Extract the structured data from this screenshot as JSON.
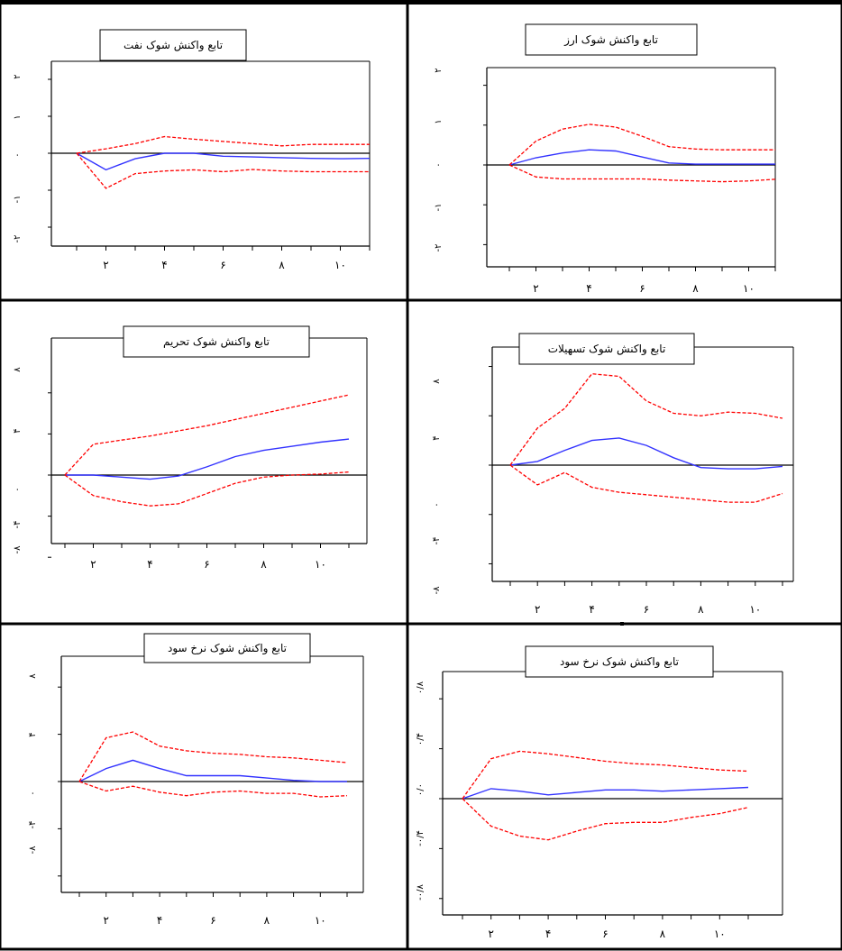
{
  "chart_data": [
    {
      "type": "line",
      "title": "تابع واکنش شوک نفت",
      "x": [
        1,
        2,
        3,
        4,
        5,
        6,
        7,
        8,
        9,
        10,
        11
      ],
      "x_ticks": [
        2,
        4,
        6,
        8,
        10
      ],
      "x_tick_labels": [
        "۲",
        "۴",
        "۶",
        "۸",
        "۱۰"
      ],
      "xlim": [
        0.5,
        11.4
      ],
      "ylim": [
        -2.5,
        2.5
      ],
      "y_ticks": [
        -2,
        -1,
        0,
        1,
        2
      ],
      "y_tick_labels": [
        "-۲",
        "-۱",
        "۰",
        "۱",
        "۲"
      ],
      "zero_line": true,
      "series": [
        {
          "values": [
            0,
            -0.45,
            -0.15,
            0.0,
            0.0,
            -0.08,
            -0.1,
            -0.12,
            -0.14,
            -0.15,
            -0.14
          ],
          "color": "#3333ff",
          "dash": "solid"
        },
        {
          "values": [
            0,
            0.12,
            0.26,
            0.45,
            0.38,
            0.32,
            0.26,
            0.2,
            0.24,
            0.24,
            0.24
          ],
          "color": "#ff0000",
          "dash": "dashed"
        },
        {
          "values": [
            0,
            -0.95,
            -0.55,
            -0.48,
            -0.45,
            -0.5,
            -0.44,
            -0.48,
            -0.5,
            -0.5,
            -0.5
          ],
          "color": "#ff0000",
          "dash": "dashed"
        }
      ]
    },
    {
      "type": "line",
      "title": "تابع واکنش شوک ارز",
      "x": [
        1,
        2,
        3,
        4,
        5,
        6,
        7,
        8,
        9,
        10,
        11
      ],
      "x_ticks": [
        2,
        4,
        6,
        8,
        10
      ],
      "x_tick_labels": [
        "۲",
        "۴",
        "۶",
        "۸",
        "۱۰"
      ],
      "xlim": [
        0.5,
        11.4
      ],
      "ylim": [
        -2.5,
        2.5
      ],
      "y_ticks": [
        -2,
        -1,
        0,
        1,
        2
      ],
      "y_tick_labels": [
        "-۲",
        "-۱",
        "۰",
        "۱",
        "۲"
      ],
      "zero_line": true,
      "series": [
        {
          "values": [
            0,
            0.18,
            0.3,
            0.38,
            0.35,
            0.2,
            0.05,
            0.02,
            0.02,
            0.02,
            0.02
          ],
          "color": "#3333ff",
          "dash": "solid"
        },
        {
          "values": [
            0,
            0.6,
            0.9,
            1.02,
            0.95,
            0.72,
            0.46,
            0.4,
            0.38,
            0.38,
            0.38
          ],
          "color": "#ff0000",
          "dash": "dashed"
        },
        {
          "values": [
            0,
            -0.3,
            -0.35,
            -0.35,
            -0.35,
            -0.35,
            -0.38,
            -0.4,
            -0.42,
            -0.4,
            -0.36
          ],
          "color": "#ff0000",
          "dash": "dashed"
        }
      ]
    },
    {
      "type": "line",
      "title": "تابع واکنش شوک تحریم",
      "x": [
        1,
        2,
        3,
        4,
        5,
        6,
        7,
        8,
        9,
        10,
        11
      ],
      "x_ticks": [
        2,
        4,
        6,
        8,
        10
      ],
      "x_tick_labels": [
        "۲",
        "۴",
        "۶",
        "۸",
        "۱۰"
      ],
      "xlim": [
        0.5,
        11.4
      ],
      "ylim": [
        -9.5,
        10.5
      ],
      "y_ticks": [
        -8,
        -4,
        0,
        4,
        8
      ],
      "y_tick_labels": [
        "-۸",
        "-۴",
        "۰",
        "۴",
        "۸"
      ],
      "zero_line": true,
      "series": [
        {
          "values": [
            0,
            0,
            -0.2,
            -0.4,
            -0.1,
            0.8,
            1.8,
            2.4,
            2.8,
            3.2,
            3.5
          ],
          "color": "#3333ff",
          "dash": "solid"
        },
        {
          "values": [
            0,
            3.0,
            3.4,
            3.8,
            4.3,
            4.8,
            5.4,
            6.0,
            6.6,
            7.2,
            7.8
          ],
          "color": "#ff0000",
          "dash": "dashed"
        },
        {
          "values": [
            0,
            -2.0,
            -2.6,
            -3.0,
            -2.8,
            -1.8,
            -0.8,
            -0.2,
            0.0,
            0.1,
            0.3
          ],
          "color": "#ff0000",
          "dash": "dashed"
        }
      ]
    },
    {
      "type": "line",
      "title": "تابع واکنش شوک تسهیلات",
      "x": [
        1,
        2,
        3,
        4,
        5,
        6,
        7,
        8,
        9,
        10,
        11
      ],
      "x_ticks": [
        2,
        4,
        6,
        8,
        10
      ],
      "x_tick_labels": [
        "۲",
        "۴",
        "۶",
        "۸",
        "۱۰"
      ],
      "xlim": [
        0.5,
        11.4
      ],
      "ylim": [
        -9.5,
        9.5
      ],
      "y_ticks": [
        -8,
        -4,
        0,
        4,
        8
      ],
      "y_tick_labels": [
        "-۸",
        "-۴",
        "۰",
        "۴",
        "۸"
      ],
      "zero_line": true,
      "series": [
        {
          "values": [
            0,
            0.3,
            1.2,
            2.0,
            2.2,
            1.6,
            0.6,
            -0.2,
            -0.3,
            -0.3,
            -0.1
          ],
          "color": "#3333ff",
          "dash": "solid"
        },
        {
          "values": [
            0,
            3.0,
            4.6,
            7.4,
            7.2,
            5.2,
            4.2,
            4.0,
            4.3,
            4.2,
            3.8
          ],
          "color": "#ff0000",
          "dash": "dashed"
        },
        {
          "values": [
            0,
            -1.6,
            -0.6,
            -1.8,
            -2.2,
            -2.4,
            -2.6,
            -2.8,
            -3.0,
            -3.0,
            -2.3
          ],
          "color": "#ff0000",
          "dash": "dashed"
        }
      ]
    },
    {
      "type": "line",
      "title": "تابع واکنش شوک نرخ سود",
      "x": [
        1,
        2,
        3,
        4,
        5,
        6,
        7,
        8,
        9,
        10,
        11
      ],
      "x_ticks": [
        2,
        4,
        6,
        8,
        10
      ],
      "x_tick_labels": [
        "۲",
        "۴",
        "۶",
        "۸",
        "۱۰"
      ],
      "xlim": [
        0.5,
        11.4
      ],
      "ylim": [
        -10,
        10
      ],
      "y_ticks": [
        -8,
        -4,
        0,
        4,
        8
      ],
      "y_tick_labels": [
        "-۸",
        "-۴",
        "۰",
        "۴",
        "۸"
      ],
      "zero_line": true,
      "series": [
        {
          "values": [
            0,
            1.1,
            1.8,
            1.1,
            0.5,
            0.5,
            0.5,
            0.3,
            0.1,
            0.0,
            0.0
          ],
          "color": "#3333ff",
          "dash": "solid"
        },
        {
          "values": [
            0,
            3.7,
            4.2,
            3.0,
            2.6,
            2.4,
            2.3,
            2.1,
            2.0,
            1.8,
            1.6
          ],
          "color": "#ff0000",
          "dash": "dashed"
        },
        {
          "values": [
            0,
            -0.8,
            -0.4,
            -0.9,
            -1.2,
            -0.9,
            -0.8,
            -1.0,
            -1.0,
            -1.3,
            -1.2
          ],
          "color": "#ff0000",
          "dash": "dashed"
        }
      ]
    },
    {
      "type": "line",
      "title": "تابع واکنش شوک نرخ سود",
      "x": [
        1,
        2,
        3,
        4,
        5,
        6,
        7,
        8,
        9,
        10,
        11
      ],
      "x_ticks": [
        2,
        4,
        6,
        8,
        10
      ],
      "x_tick_labels": [
        "۲",
        "۴",
        "۶",
        "۸",
        "۱۰"
      ],
      "xlim": [
        0.5,
        11.4
      ],
      "ylim": [
        -0.95,
        1.0
      ],
      "y_ticks": [
        -0.8,
        -0.4,
        0.0,
        0.4,
        0.8
      ],
      "y_tick_labels": [
        "-۰/۸",
        "-۰/۴",
        "۰/۰",
        "۰/۴",
        "۰/۸"
      ],
      "zero_line": true,
      "series": [
        {
          "values": [
            0,
            0.08,
            0.06,
            0.03,
            0.05,
            0.07,
            0.07,
            0.06,
            0.07,
            0.08,
            0.09
          ],
          "color": "#3333ff",
          "dash": "solid"
        },
        {
          "values": [
            0,
            0.32,
            0.38,
            0.36,
            0.33,
            0.3,
            0.28,
            0.27,
            0.25,
            0.23,
            0.22
          ],
          "color": "#ff0000",
          "dash": "dashed"
        },
        {
          "values": [
            0,
            -0.22,
            -0.3,
            -0.33,
            -0.26,
            -0.2,
            -0.19,
            -0.19,
            -0.15,
            -0.12,
            -0.07
          ],
          "color": "#ff0000",
          "dash": "dashed"
        }
      ]
    }
  ]
}
